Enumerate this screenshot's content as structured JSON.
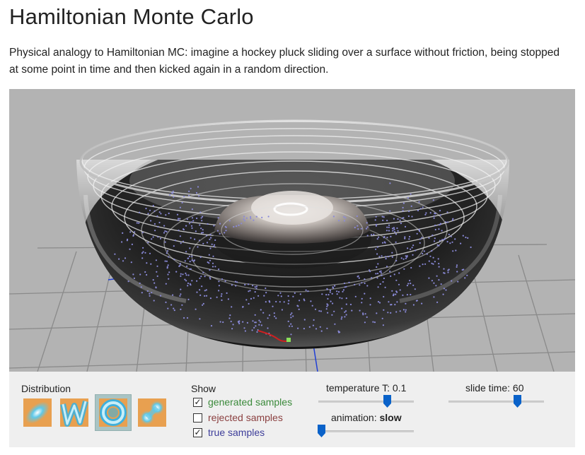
{
  "page": {
    "title": "Hamiltonian Monte Carlo",
    "intro": "Physical analogy to Hamiltonian MC: imagine a hockey pluck sliding over a surface without friction, being stopped at some point in time and then kicked again in a random direction."
  },
  "controls": {
    "distribution_label": "Distribution",
    "distributions": [
      {
        "icon": "ellipse-distribution-icon",
        "selected": false
      },
      {
        "icon": "zigzag-distribution-icon",
        "selected": false
      },
      {
        "icon": "ring-distribution-icon",
        "selected": true
      },
      {
        "icon": "bimodal-distribution-icon",
        "selected": false
      }
    ],
    "show_label": "Show",
    "show": [
      {
        "label": "generated samples",
        "checked": true,
        "color": "#3b8a3b"
      },
      {
        "label": "rejected samples",
        "checked": false,
        "color": "#8b4040"
      },
      {
        "label": "true samples",
        "checked": true,
        "color": "#3d3d9a"
      }
    ],
    "temperature": {
      "label": "temperature T: 0.1",
      "value_fraction": 0.72
    },
    "slide_time": {
      "label": "slide time: 60",
      "value_fraction": 0.72
    },
    "animation": {
      "label": "animation: ",
      "value": "slow",
      "value_fraction": 0.03
    }
  },
  "colors": {
    "accent": "#0a62c9",
    "viewport_bg": "#b3b3b3",
    "panel_bg": "#efefef",
    "sample_dots": "#8a8ad8",
    "trajectory": "#cc2020",
    "axis": "#1f3fd6"
  }
}
